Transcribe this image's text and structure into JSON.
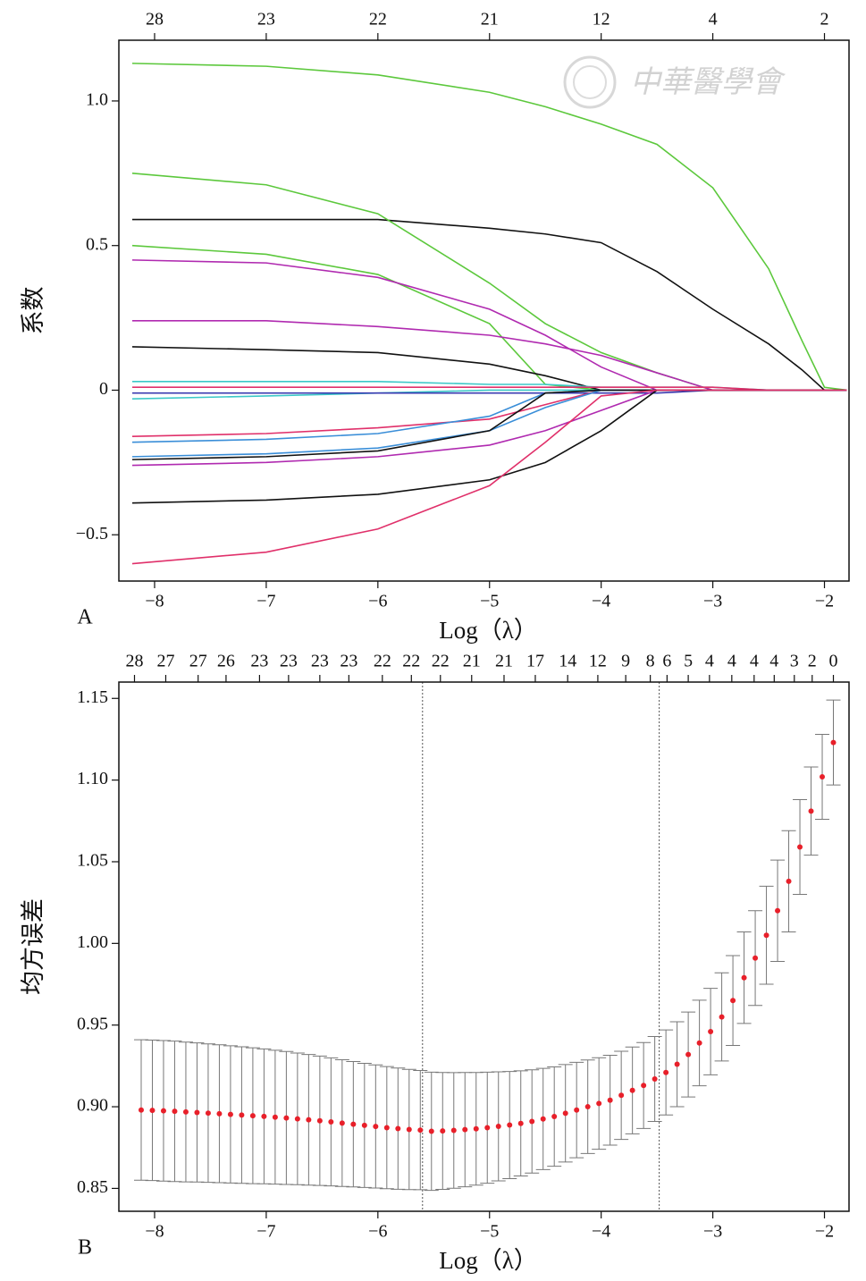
{
  "chart_data": [
    {
      "type": "line",
      "panel_label": "A",
      "xlabel": "Log（λ）",
      "ylabel": "系数",
      "watermark": "中華醫學會",
      "xlim": [
        -8.32,
        -1.78
      ],
      "ylim": [
        -0.66,
        1.21
      ],
      "xticks": [
        {
          "value": -8,
          "label": "−8"
        },
        {
          "value": -7,
          "label": "−7"
        },
        {
          "value": -6,
          "label": "−6"
        },
        {
          "value": -5,
          "label": "−5"
        },
        {
          "value": -4,
          "label": "−4"
        },
        {
          "value": -3,
          "label": "−3"
        },
        {
          "value": -2,
          "label": "−2"
        }
      ],
      "yticks": [
        {
          "value": -0.5,
          "label": "−0.5"
        },
        0,
        0.5,
        {
          "value": 1.0,
          "label": "1.0"
        }
      ],
      "top_ticks": [
        {
          "value": -8,
          "label": "28"
        },
        {
          "value": -7,
          "label": "23"
        },
        {
          "value": -6,
          "label": "22"
        },
        {
          "value": -5,
          "label": "21"
        },
        {
          "value": -4,
          "label": "12"
        },
        {
          "value": -3,
          "label": "4"
        },
        {
          "value": -2,
          "label": "2"
        }
      ],
      "x": [
        -8.2,
        -7,
        -6,
        -5,
        -4.5,
        -4,
        -3.5,
        -3,
        -2.5,
        -2.2,
        -2,
        -1.8
      ],
      "series": [
        {
          "color": "#5cc83c",
          "values": [
            1.13,
            1.12,
            1.09,
            1.03,
            0.98,
            0.92,
            0.85,
            0.7,
            0.42,
            0.17,
            0.01,
            0
          ]
        },
        {
          "color": "#111111",
          "values": [
            0.59,
            0.59,
            0.59,
            0.56,
            0.54,
            0.51,
            0.41,
            0.28,
            0.16,
            0.07,
            0,
            0
          ]
        },
        {
          "color": "#5cc83c",
          "values": [
            0.75,
            0.71,
            0.61,
            0.37,
            0.23,
            0.13,
            0.06,
            0,
            0,
            0,
            0,
            0
          ]
        },
        {
          "color": "#5cc83c",
          "values": [
            0.5,
            0.47,
            0.4,
            0.23,
            0.02,
            0,
            0,
            0,
            0,
            0,
            0,
            0
          ]
        },
        {
          "color": "#b02ab0",
          "values": [
            0.45,
            0.44,
            0.39,
            0.28,
            0.19,
            0.08,
            0,
            0,
            0,
            0,
            0,
            0
          ]
        },
        {
          "color": "#b02ab0",
          "values": [
            0.24,
            0.24,
            0.22,
            0.19,
            0.16,
            0.12,
            0.06,
            0,
            0,
            0,
            0,
            0
          ]
        },
        {
          "color": "#111111",
          "values": [
            0.15,
            0.14,
            0.13,
            0.09,
            0.05,
            0,
            0,
            0,
            0,
            0,
            0,
            0
          ]
        },
        {
          "color": "#3cc8c8",
          "values": [
            0.03,
            0.03,
            0.03,
            0.02,
            0.02,
            0.01,
            0.01,
            0.01,
            0,
            0,
            0,
            0
          ]
        },
        {
          "color": "#3cc8c8",
          "values": [
            -0.03,
            -0.02,
            -0.01,
            0,
            0,
            0,
            0,
            0,
            0,
            0,
            0,
            0
          ]
        },
        {
          "color": "#3a3ab0",
          "values": [
            -0.01,
            -0.01,
            -0.01,
            -0.01,
            -0.01,
            -0.01,
            -0.01,
            0,
            0,
            0,
            0,
            0
          ]
        },
        {
          "color": "#e0306a",
          "values": [
            0.01,
            0.01,
            0.01,
            0.01,
            0.01,
            0.01,
            0.01,
            0.01,
            0,
            0,
            0,
            0
          ]
        },
        {
          "color": "#e0306a",
          "values": [
            -0.16,
            -0.15,
            -0.13,
            -0.1,
            -0.05,
            0,
            0,
            0,
            0,
            0,
            0,
            0
          ]
        },
        {
          "color": "#3a8ed8",
          "values": [
            -0.18,
            -0.17,
            -0.15,
            -0.09,
            -0.01,
            0,
            0,
            0,
            0,
            0,
            0,
            0
          ]
        },
        {
          "color": "#3a8ed8",
          "values": [
            -0.23,
            -0.22,
            -0.2,
            -0.14,
            -0.06,
            0,
            0,
            0,
            0,
            0,
            0,
            0
          ]
        },
        {
          "color": "#111111",
          "values": [
            -0.24,
            -0.23,
            -0.21,
            -0.14,
            -0.01,
            0,
            0,
            0,
            0,
            0,
            0,
            0
          ]
        },
        {
          "color": "#b02ab0",
          "values": [
            -0.26,
            -0.25,
            -0.23,
            -0.19,
            -0.14,
            -0.07,
            0,
            0,
            0,
            0,
            0,
            0
          ]
        },
        {
          "color": "#111111",
          "values": [
            -0.39,
            -0.38,
            -0.36,
            -0.31,
            -0.25,
            -0.14,
            0,
            0,
            0,
            0,
            0,
            0
          ]
        },
        {
          "color": "#e0306a",
          "values": [
            -0.6,
            -0.56,
            -0.48,
            -0.33,
            -0.18,
            -0.02,
            0,
            0,
            0,
            0,
            0,
            0
          ]
        }
      ]
    },
    {
      "type": "errorbar",
      "panel_label": "B",
      "xlabel": "Log（λ）",
      "ylabel": "均方误差",
      "xlim": [
        -8.32,
        -1.78
      ],
      "ylim": [
        0.836,
        1.16
      ],
      "xticks": [
        {
          "value": -8,
          "label": "−8"
        },
        {
          "value": -7,
          "label": "−7"
        },
        {
          "value": -6,
          "label": "−6"
        },
        {
          "value": -5,
          "label": "−5"
        },
        {
          "value": -4,
          "label": "−4"
        },
        {
          "value": -3,
          "label": "−3"
        },
        {
          "value": -2,
          "label": "−2"
        }
      ],
      "yticks": [
        0.85,
        {
          "value": 0.9,
          "label": "0.90"
        },
        0.95,
        {
          "value": 1.0,
          "label": "1.00"
        },
        1.05,
        {
          "value": 1.1,
          "label": "1.10"
        },
        1.15
      ],
      "top_ticks": [
        {
          "value": -8.18,
          "label": "28"
        },
        {
          "value": -7.9,
          "label": "27"
        },
        {
          "value": -7.61,
          "label": "27"
        },
        {
          "value": -7.36,
          "label": "26"
        },
        {
          "value": -7.06,
          "label": "23"
        },
        {
          "value": -6.8,
          "label": "23"
        },
        {
          "value": -6.52,
          "label": "23"
        },
        {
          "value": -6.26,
          "label": "23"
        },
        {
          "value": -5.96,
          "label": "22"
        },
        {
          "value": -5.7,
          "label": "22"
        },
        {
          "value": -5.44,
          "label": "22"
        },
        {
          "value": -5.16,
          "label": "21"
        },
        {
          "value": -4.87,
          "label": "21"
        },
        {
          "value": -4.59,
          "label": "17"
        },
        {
          "value": -4.3,
          "label": "14"
        },
        {
          "value": -4.03,
          "label": "12"
        },
        {
          "value": -3.78,
          "label": "9"
        },
        {
          "value": -3.56,
          "label": "8"
        },
        {
          "value": -3.41,
          "label": "6"
        },
        {
          "value": -3.22,
          "label": "5"
        },
        {
          "value": -3.03,
          "label": "4"
        },
        {
          "value": -2.83,
          "label": "4"
        },
        {
          "value": -2.63,
          "label": "4"
        },
        {
          "value": -2.45,
          "label": "4"
        },
        {
          "value": -2.27,
          "label": "3"
        },
        {
          "value": -2.11,
          "label": "2"
        },
        {
          "value": -1.92,
          "label": "0"
        }
      ],
      "vlines": [
        -5.6,
        -3.48
      ],
      "color": "#e8202a",
      "error_color": "#777777",
      "x": [
        -8.12,
        -8.02,
        -7.92,
        -7.82,
        -7.72,
        -7.62,
        -7.52,
        -7.42,
        -7.32,
        -7.22,
        -7.12,
        -7.02,
        -6.92,
        -6.82,
        -6.72,
        -6.62,
        -6.52,
        -6.42,
        -6.32,
        -6.22,
        -6.12,
        -6.02,
        -5.92,
        -5.82,
        -5.72,
        -5.62,
        -5.52,
        -5.42,
        -5.32,
        -5.22,
        -5.12,
        -5.02,
        -4.92,
        -4.82,
        -4.72,
        -4.62,
        -4.52,
        -4.42,
        -4.32,
        -4.22,
        -4.12,
        -4.02,
        -3.92,
        -3.82,
        -3.72,
        -3.62,
        -3.52,
        -3.42,
        -3.32,
        -3.22,
        -3.12,
        -3.02,
        -2.92,
        -2.82,
        -2.72,
        -2.62,
        -2.52,
        -2.42,
        -2.32,
        -2.22,
        -2.12,
        -2.02,
        -1.92
      ],
      "values": [
        0.898,
        0.8978,
        0.8975,
        0.8972,
        0.8968,
        0.8965,
        0.8961,
        0.8957,
        0.8953,
        0.8949,
        0.8945,
        0.8941,
        0.8936,
        0.8931,
        0.8926,
        0.892,
        0.8914,
        0.8907,
        0.89,
        0.8893,
        0.8886,
        0.8879,
        0.8872,
        0.8866,
        0.8861,
        0.8857,
        0.885,
        0.8852,
        0.8855,
        0.886,
        0.8865,
        0.8872,
        0.888,
        0.8888,
        0.8898,
        0.891,
        0.8925,
        0.894,
        0.896,
        0.898,
        0.9,
        0.902,
        0.904,
        0.907,
        0.91,
        0.913,
        0.917,
        0.921,
        0.926,
        0.932,
        0.939,
        0.946,
        0.955,
        0.965,
        0.979,
        0.991,
        1.005,
        1.02,
        1.038,
        1.059,
        1.081,
        1.102,
        1.123
      ],
      "errors": [
        0.043,
        0.043,
        0.043,
        0.043,
        0.0428,
        0.0426,
        0.0424,
        0.0422,
        0.042,
        0.0418,
        0.0416,
        0.0413,
        0.041,
        0.0407,
        0.0403,
        0.04,
        0.0396,
        0.0392,
        0.0388,
        0.0384,
        0.038,
        0.0377,
        0.0374,
        0.0371,
        0.0368,
        0.0365,
        0.0362,
        0.0358,
        0.0354,
        0.035,
        0.0345,
        0.034,
        0.0334,
        0.0328,
        0.0322,
        0.0316,
        0.031,
        0.0304,
        0.0298,
        0.0292,
        0.0286,
        0.028,
        0.0275,
        0.027,
        0.0266,
        0.0263,
        0.026,
        0.026,
        0.026,
        0.026,
        0.0262,
        0.0265,
        0.027,
        0.0275,
        0.028,
        0.029,
        0.03,
        0.031,
        0.031,
        0.029,
        0.027,
        0.026,
        0.026
      ]
    }
  ]
}
